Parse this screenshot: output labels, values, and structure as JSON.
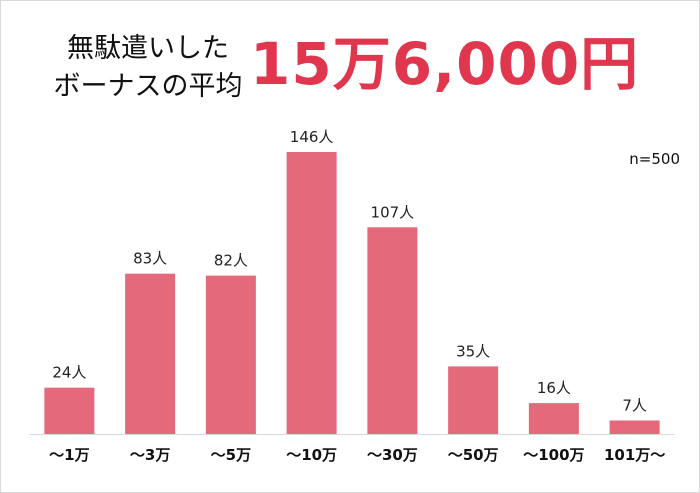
{
  "header": {
    "title_line1": "無駄遣いした",
    "title_line2": "ボーナスの平均",
    "average_value": "15万6,000円"
  },
  "sample_size": "n=500",
  "colors": {
    "bar": "#e46a7b",
    "accent": "#e0364e"
  },
  "chart_data": {
    "type": "bar",
    "categories": [
      "〜1万",
      "〜3万",
      "〜5万",
      "〜10万",
      "〜30万",
      "〜50万",
      "〜100万",
      "101万〜"
    ],
    "values": [
      24,
      83,
      82,
      146,
      107,
      35,
      16,
      7
    ],
    "value_labels": [
      "24人",
      "83人",
      "82人",
      "146人",
      "107人",
      "35人",
      "16人",
      "7人"
    ],
    "unit": "人",
    "title": "",
    "xlabel": "",
    "ylabel": "",
    "ylim": [
      0,
      150
    ],
    "grid": false,
    "legend": "none"
  }
}
